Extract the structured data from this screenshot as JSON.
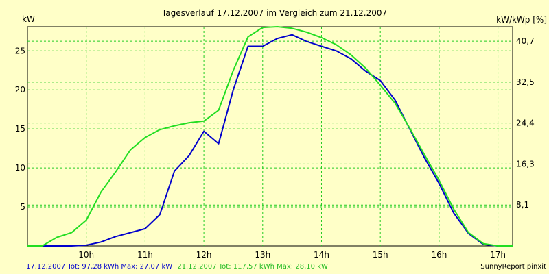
{
  "chart_data": {
    "type": "line",
    "title": "Tagesverlauf 17.12.2007 im Vergleich zum 21.12.2007",
    "ylabel_left": "kW",
    "ylabel_right": "kW/kWp [%]",
    "xlim": [
      9.0,
      17.25
    ],
    "ylim": [
      0,
      28.1
    ],
    "x_ticks": [
      10,
      11,
      12,
      13,
      14,
      15,
      16,
      17
    ],
    "x_tick_labels": [
      "10h",
      "11h",
      "12h",
      "13h",
      "14h",
      "15h",
      "16h",
      "17h"
    ],
    "y_ticks": [
      5,
      10,
      15,
      20,
      25
    ],
    "y_tick_labels": [
      "5",
      "10",
      "15",
      "20",
      "25"
    ],
    "y2_ticks": [
      5.25,
      10.5,
      15.75,
      21.0,
      26.25
    ],
    "y2_tick_labels": [
      "8,1",
      "16,3",
      "24,4",
      "32,5",
      "40,7"
    ],
    "grid": true,
    "series": [
      {
        "name": "17.12.2007",
        "color": "#0000cc",
        "x": [
          9.0,
          9.25,
          9.5,
          9.75,
          10.0,
          10.25,
          10.5,
          10.75,
          11.0,
          11.25,
          11.5,
          11.75,
          12.0,
          12.25,
          12.5,
          12.75,
          13.0,
          13.25,
          13.5,
          13.75,
          14.0,
          14.25,
          14.5,
          14.75,
          15.0,
          15.25,
          15.5,
          15.75,
          16.0,
          16.25,
          16.5,
          16.75,
          17.0,
          17.25
        ],
        "values": [
          0.0,
          0.0,
          0.0,
          0.0,
          0.1,
          0.5,
          1.2,
          1.7,
          2.2,
          4.0,
          9.6,
          11.6,
          14.7,
          13.1,
          20.0,
          25.6,
          25.6,
          26.6,
          27.07,
          26.2,
          25.6,
          25.0,
          24.0,
          22.4,
          21.2,
          18.7,
          15.0,
          11.3,
          8.0,
          4.2,
          1.6,
          0.2,
          0.0,
          0.0
        ]
      },
      {
        "name": "21.12.2007",
        "color": "#22dd22",
        "x": [
          9.0,
          9.25,
          9.5,
          9.75,
          10.0,
          10.25,
          10.5,
          10.75,
          11.0,
          11.25,
          11.5,
          11.75,
          12.0,
          12.25,
          12.5,
          12.75,
          13.0,
          13.25,
          13.5,
          13.75,
          14.0,
          14.25,
          14.5,
          14.75,
          15.0,
          15.25,
          15.5,
          15.75,
          16.0,
          16.25,
          16.5,
          16.75,
          17.0,
          17.25
        ],
        "values": [
          0.0,
          0.0,
          1.1,
          1.7,
          3.3,
          6.9,
          9.5,
          12.3,
          13.9,
          14.9,
          15.4,
          15.8,
          16.0,
          17.4,
          22.5,
          26.8,
          28.0,
          28.1,
          27.9,
          27.4,
          26.7,
          25.8,
          24.5,
          22.8,
          20.6,
          18.3,
          15.1,
          11.7,
          8.4,
          4.7,
          1.7,
          0.3,
          0.0,
          0.0
        ]
      }
    ]
  },
  "footer": {
    "series1_text": "17.12.2007 Tot: 97,28 kWh Max: 27,07 kW",
    "series2_text": "21.12.2007 Tot: 117,57 kWh Max: 28,10 kW",
    "credit": "SunnyReport pinxit"
  }
}
